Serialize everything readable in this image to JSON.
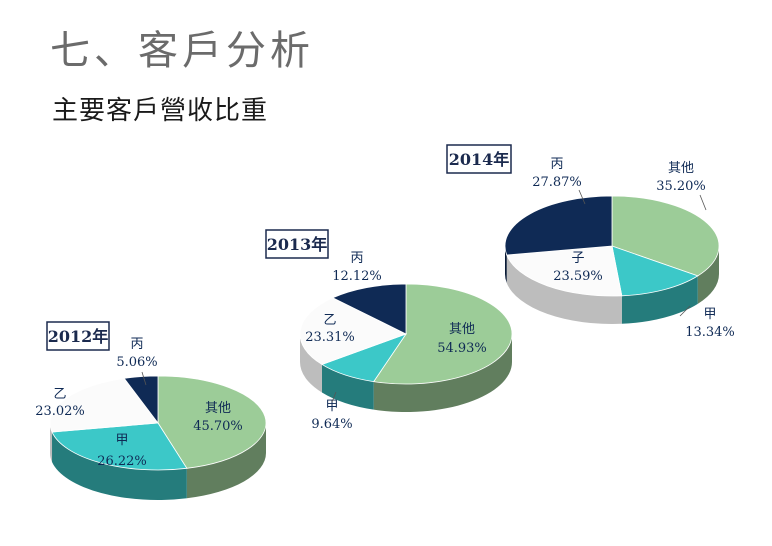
{
  "page": {
    "title": "七、客戶分析",
    "subtitle": "主要客戶營收比重"
  },
  "colors": {
    "其他": "#9ccc98",
    "甲": "#3cc8c8",
    "乙": "#fbfbfb",
    "丙": "#0f2a55",
    "子": "#fbfbfb",
    "label_dark": "#0f2a55",
    "label_light": "#ffffff"
  },
  "chart_data": [
    {
      "type": "pie",
      "title": "2012年",
      "slices": [
        {
          "name": "其他",
          "value": 45.7,
          "label": "45.70%"
        },
        {
          "name": "甲",
          "value": 26.22,
          "label": "26.22%"
        },
        {
          "name": "乙",
          "value": 23.02,
          "label": "23.02%"
        },
        {
          "name": "丙",
          "value": 5.06,
          "label": "5.06%"
        }
      ]
    },
    {
      "type": "pie",
      "title": "2013年",
      "slices": [
        {
          "name": "其他",
          "value": 54.93,
          "label": "54.93%"
        },
        {
          "name": "甲",
          "value": 9.64,
          "label": "9.64%"
        },
        {
          "name": "乙",
          "value": 23.31,
          "label": "23.31%"
        },
        {
          "name": "丙",
          "value": 12.12,
          "label": "12.12%"
        }
      ]
    },
    {
      "type": "pie",
      "title": "2014年",
      "slices": [
        {
          "name": "其他",
          "value": 35.2,
          "label": "35.20%"
        },
        {
          "name": "甲",
          "value": 13.34,
          "label": "13.34%"
        },
        {
          "name": "子",
          "value": 23.59,
          "label": "23.59%"
        },
        {
          "name": "丙",
          "value": 27.87,
          "label": "27.87%"
        }
      ]
    }
  ]
}
